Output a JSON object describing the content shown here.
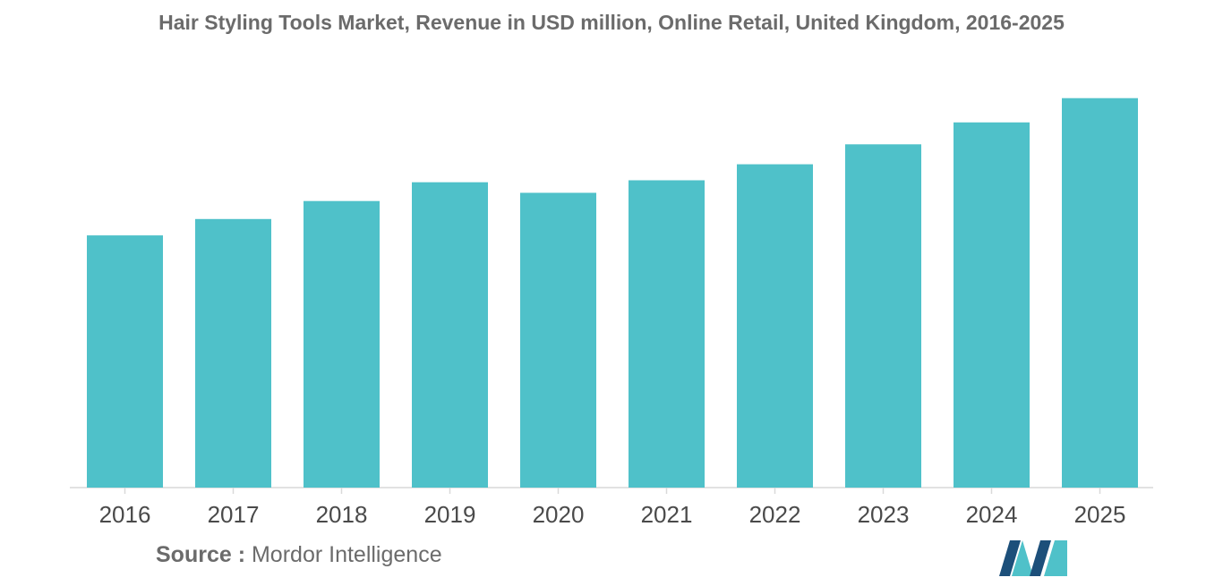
{
  "title": "Hair Styling Tools Market, Revenue in USD million, Online Retail, United Kingdom, 2016-2025",
  "source": {
    "label": "Source :",
    "value": "Mordor Intelligence"
  },
  "colors": {
    "bar": "#4fc1c9",
    "axis": "#d9d9d9",
    "tick_label": "#4a4a4a",
    "title": "#6b6b6b",
    "logo_dark": "#1c4f7a",
    "logo_light": "#4fc1c9"
  },
  "chart_data": {
    "type": "bar",
    "title": "Hair Styling Tools Market, Revenue in USD million, Online Retail, United Kingdom, 2016-2025",
    "xlabel": "",
    "ylabel": "",
    "categories": [
      "2016",
      "2017",
      "2018",
      "2019",
      "2020",
      "2021",
      "2022",
      "2023",
      "2024",
      "2025"
    ],
    "values": [
      64.5,
      68.7,
      73.3,
      78.1,
      75.4,
      78.6,
      82.7,
      87.8,
      93.4,
      99.6
    ],
    "ylim": [
      0,
      100
    ],
    "grid": false,
    "legend": "none"
  }
}
